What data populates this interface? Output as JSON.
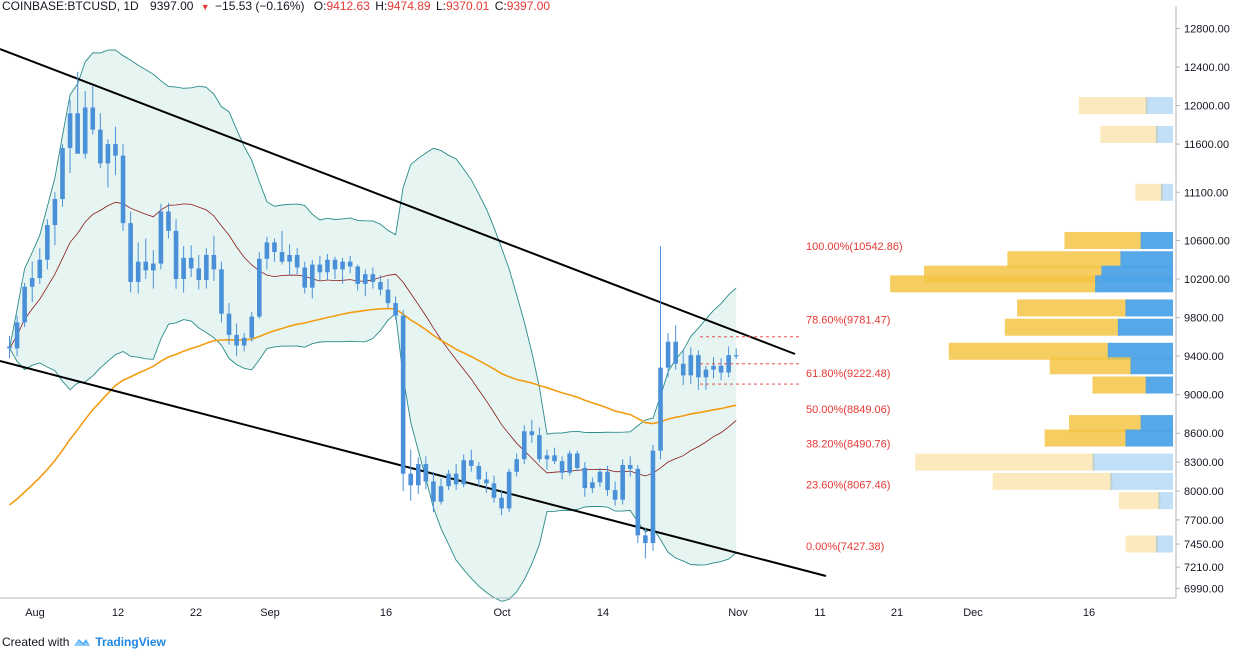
{
  "header": {
    "symbol": "COINBASE:BTCUSD, 1D",
    "last": "9397.00",
    "change": "−15.53 (−0.16%)",
    "o_label": "O:",
    "o": "9412.63",
    "h_label": "H:",
    "h": "9474.89",
    "l_label": "L:",
    "l": "9370.01",
    "c_label": "C:",
    "c": "9397.00"
  },
  "footer": {
    "created_with": "Created with",
    "brand": "TradingView"
  },
  "colors": {
    "up": "#4a90d9",
    "down": "#4a90d9",
    "bb_fill": "#e6f5f2",
    "bb_edge": "#2a8a8a",
    "ema": "#f39c12",
    "mid": "#8b1a1a",
    "fib_text": "#e53935",
    "vp_up": "#4ea3e8",
    "vp_down": "#f5c445"
  },
  "chart_data": {
    "type": "candlestick",
    "title": "COINBASE:BTCUSD, 1D",
    "ylim": [
      6890,
      12950
    ],
    "y_ticks": [
      "12800.00",
      "12400.00",
      "12000.00",
      "11600.00",
      "11100.00",
      "10600.00",
      "10200.00",
      "9800.00",
      "9400.00",
      "9000.00",
      "8600.00",
      "8300.00",
      "8000.00",
      "7700.00",
      "7450.00",
      "7210.00",
      "6990.00"
    ],
    "x_ticks": [
      "Aug",
      "12",
      "22",
      "Sep",
      "16",
      "Oct",
      "14",
      "Nov",
      "11",
      "21",
      "Dec",
      "16"
    ],
    "fib_levels": [
      {
        "label": "100.00%(10542.86)",
        "value": 10542.86
      },
      {
        "label": "78.60%(9781.47)",
        "value": 9781.47
      },
      {
        "label": "61.80%(9222.48)",
        "value": 9222.48
      },
      {
        "label": "50.00%(8849.06)",
        "value": 8849.06
      },
      {
        "label": "38.20%(8490.76)",
        "value": 8490.76
      },
      {
        "label": "23.60%(8067.46)",
        "value": 8067.46
      },
      {
        "label": "0.00%(7427.38)",
        "value": 7427.38
      }
    ],
    "candles_ohlc": [
      [
        9500,
        9610,
        9380,
        9480
      ],
      [
        9480,
        9820,
        9400,
        9750
      ],
      [
        9750,
        10160,
        9700,
        10120
      ],
      [
        10120,
        10380,
        9960,
        10210
      ],
      [
        10210,
        10520,
        10150,
        10400
      ],
      [
        10400,
        10820,
        10300,
        10760
      ],
      [
        10760,
        11100,
        10550,
        11030
      ],
      [
        11030,
        11600,
        10950,
        11560
      ],
      [
        11560,
        12060,
        11300,
        11920
      ],
      [
        11920,
        12350,
        11600,
        11500
      ],
      [
        11500,
        12150,
        11450,
        11980
      ],
      [
        11980,
        12200,
        11700,
        11750
      ],
      [
        11750,
        11920,
        11350,
        11400
      ],
      [
        11400,
        11650,
        11150,
        11600
      ],
      [
        11600,
        11780,
        11280,
        11480
      ],
      [
        11480,
        11600,
        10700,
        10780
      ],
      [
        10780,
        10900,
        10060,
        10170
      ],
      [
        10170,
        10580,
        10050,
        10380
      ],
      [
        10380,
        10620,
        10200,
        10290
      ],
      [
        10290,
        10500,
        10100,
        10360
      ],
      [
        10360,
        10980,
        10300,
        10900
      ],
      [
        10900,
        10990,
        10620,
        10700
      ],
      [
        10700,
        10820,
        10100,
        10200
      ],
      [
        10200,
        10540,
        10060,
        10420
      ],
      [
        10420,
        10550,
        10220,
        10310
      ],
      [
        10310,
        10450,
        10090,
        10190
      ],
      [
        10190,
        10520,
        10100,
        10450
      ],
      [
        10450,
        10650,
        10180,
        10300
      ],
      [
        10300,
        10380,
        9750,
        9840
      ],
      [
        9840,
        9950,
        9520,
        9620
      ],
      [
        9620,
        9740,
        9400,
        9510
      ],
      [
        9510,
        9640,
        9450,
        9590
      ],
      [
        9590,
        9860,
        9550,
        9810
      ],
      [
        9810,
        10480,
        9790,
        10410
      ],
      [
        10410,
        10640,
        10300,
        10580
      ],
      [
        10580,
        10620,
        10380,
        10480
      ],
      [
        10480,
        10700,
        10350,
        10380
      ],
      [
        10380,
        10560,
        10240,
        10450
      ],
      [
        10450,
        10520,
        10250,
        10320
      ],
      [
        10320,
        10380,
        10050,
        10110
      ],
      [
        10110,
        10400,
        10000,
        10350
      ],
      [
        10350,
        10440,
        10180,
        10270
      ],
      [
        10270,
        10460,
        10190,
        10400
      ],
      [
        10400,
        10430,
        10200,
        10300
      ],
      [
        10300,
        10420,
        10150,
        10380
      ],
      [
        10380,
        10440,
        10260,
        10330
      ],
      [
        10330,
        10350,
        10080,
        10150
      ],
      [
        10150,
        10300,
        10020,
        10250
      ],
      [
        10250,
        10320,
        10100,
        10170
      ],
      [
        10170,
        10240,
        10030,
        10090
      ],
      [
        10090,
        10200,
        9900,
        9950
      ],
      [
        9950,
        10020,
        9780,
        9820
      ],
      [
        9820,
        9880,
        8000,
        8180
      ],
      [
        8180,
        8430,
        7900,
        8060
      ],
      [
        8060,
        8350,
        7970,
        8280
      ],
      [
        8280,
        8360,
        8020,
        8100
      ],
      [
        8100,
        8200,
        7780,
        7890
      ],
      [
        7890,
        8130,
        7860,
        8050
      ],
      [
        8050,
        8220,
        8010,
        8180
      ],
      [
        8180,
        8280,
        8010,
        8070
      ],
      [
        8070,
        8380,
        8040,
        8320
      ],
      [
        8320,
        8430,
        8200,
        8260
      ],
      [
        8260,
        8300,
        8050,
        8120
      ],
      [
        8120,
        8200,
        7980,
        8080
      ],
      [
        8080,
        8160,
        7880,
        7930
      ],
      [
        7930,
        8010,
        7750,
        7820
      ],
      [
        7820,
        8230,
        7780,
        8200
      ],
      [
        8200,
        8390,
        8150,
        8330
      ],
      [
        8330,
        8680,
        8280,
        8620
      ],
      [
        8620,
        8740,
        8500,
        8580
      ],
      [
        8580,
        8660,
        8300,
        8330
      ],
      [
        8330,
        8430,
        8220,
        8370
      ],
      [
        8370,
        8450,
        8280,
        8310
      ],
      [
        8310,
        8360,
        8120,
        8190
      ],
      [
        8190,
        8420,
        8160,
        8390
      ],
      [
        8390,
        8420,
        8210,
        8240
      ],
      [
        8240,
        8300,
        7940,
        8030
      ],
      [
        8030,
        8140,
        7980,
        8090
      ],
      [
        8090,
        8240,
        8040,
        8200
      ],
      [
        8200,
        8260,
        7950,
        8010
      ],
      [
        8010,
        8100,
        7850,
        7910
      ],
      [
        7910,
        8330,
        7860,
        8270
      ],
      [
        8270,
        8360,
        8150,
        8230
      ],
      [
        8230,
        8270,
        7460,
        7540
      ],
      [
        7540,
        7620,
        7300,
        7460
      ],
      [
        7460,
        8480,
        7380,
        8420
      ],
      [
        8420,
        10540,
        8330,
        9280
      ],
      [
        9280,
        9640,
        9180,
        9550
      ],
      [
        9550,
        9720,
        9260,
        9320
      ],
      [
        9320,
        9460,
        9100,
        9200
      ],
      [
        9200,
        9490,
        9110,
        9410
      ],
      [
        9410,
        9460,
        9050,
        9180
      ],
      [
        9180,
        9300,
        9050,
        9260
      ],
      [
        9260,
        9390,
        9170,
        9300
      ],
      [
        9300,
        9380,
        9150,
        9230
      ],
      [
        9230,
        9500,
        9180,
        9410
      ],
      [
        9410,
        9480,
        9370,
        9397
      ]
    ],
    "volume_profile": [
      {
        "price": 12000,
        "up": 0.2,
        "down": 0.3
      },
      {
        "price": 11700,
        "up": 0.12,
        "down": 0.25
      },
      {
        "price": 11100,
        "up": 0.08,
        "down": 0.12
      },
      {
        "price": 10600,
        "up": 0.24,
        "down": 0.34
      },
      {
        "price": 10400,
        "up": 0.4,
        "down": 0.5
      },
      {
        "price": 10250,
        "up": 0.55,
        "down": 0.78
      },
      {
        "price": 10150,
        "up": 0.6,
        "down": 0.9
      },
      {
        "price": 9900,
        "up": 0.36,
        "down": 0.48
      },
      {
        "price": 9700,
        "up": 0.42,
        "down": 0.5
      },
      {
        "price": 9450,
        "up": 0.5,
        "down": 0.7
      },
      {
        "price": 9300,
        "up": 0.32,
        "down": 0.36
      },
      {
        "price": 9100,
        "up": 0.2,
        "down": 0.24
      },
      {
        "price": 8700,
        "up": 0.24,
        "down": 0.32
      },
      {
        "price": 8550,
        "up": 0.36,
        "down": 0.36
      },
      {
        "price": 8300,
        "up": 0.62,
        "down": 0.78
      },
      {
        "price": 8100,
        "up": 0.48,
        "down": 0.52
      },
      {
        "price": 7900,
        "up": 0.1,
        "down": 0.18
      },
      {
        "price": 7450,
        "up": 0.12,
        "down": 0.14
      }
    ]
  }
}
